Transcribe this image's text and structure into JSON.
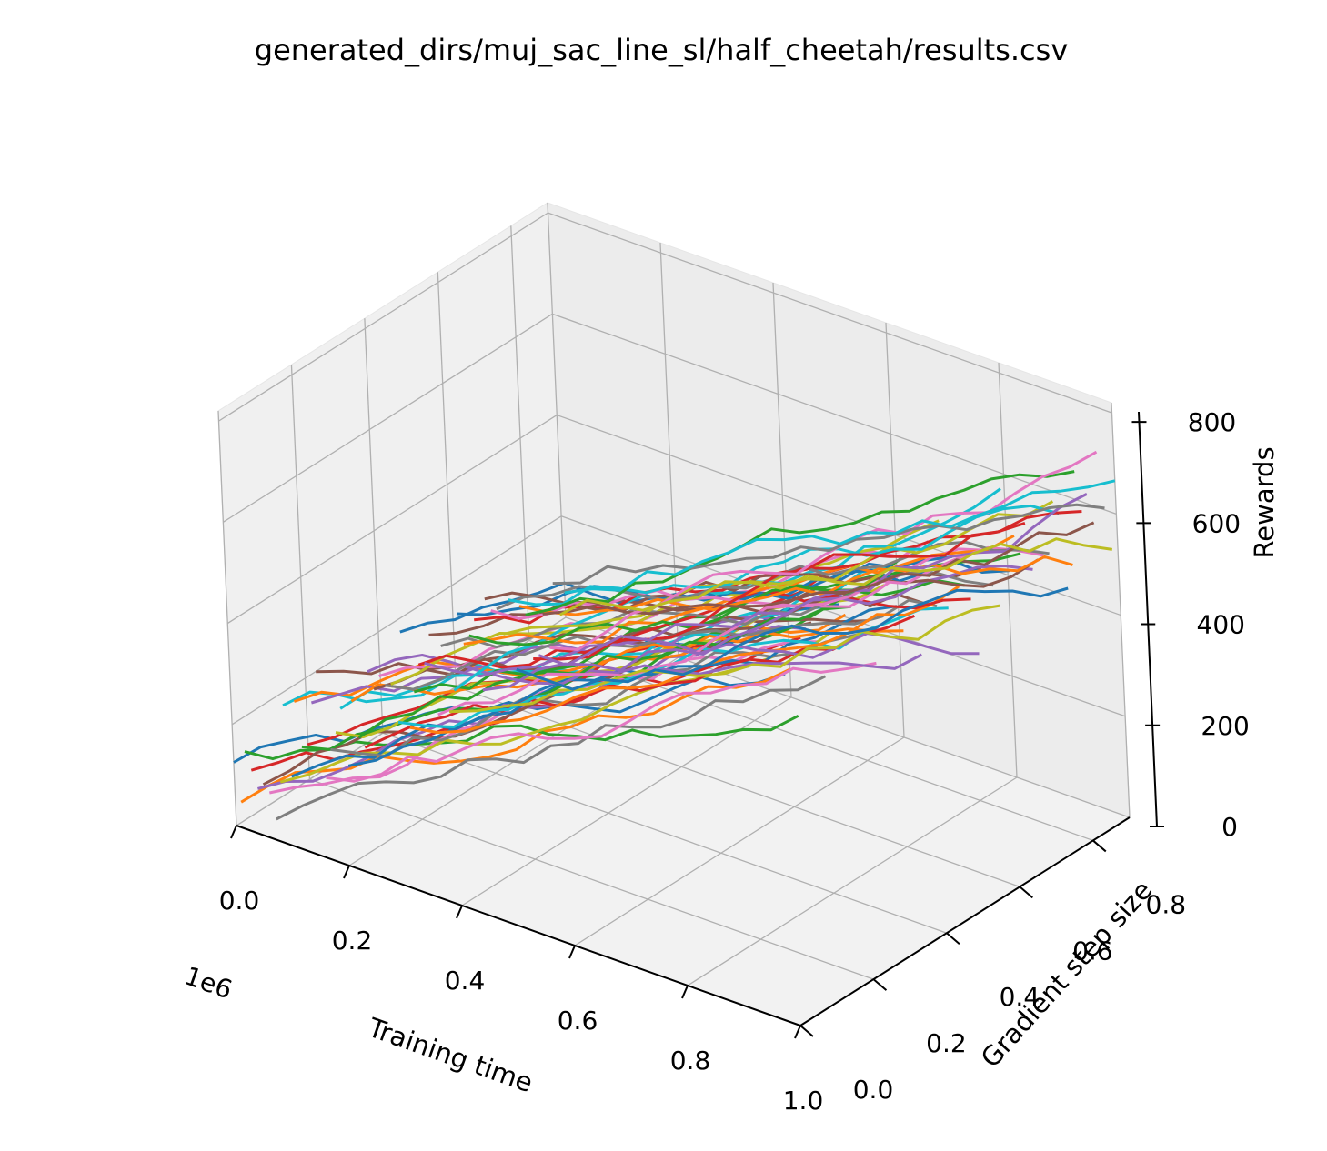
{
  "chart_data": {
    "type": "line",
    "projection": "3d",
    "title": "generated_dirs/muj_sac_line_sl/half_cheetah/results.csv",
    "xlabel": "Training time",
    "ylabel": "Gradient step size",
    "zlabel": "Rewards",
    "x_offset_label": "1e6",
    "xlim": [
      0,
      1.0
    ],
    "ylim": [
      0,
      0.9
    ],
    "zlim": [
      0,
      820
    ],
    "x_ticks": [
      "0.0",
      "0.2",
      "0.4",
      "0.6",
      "0.8",
      "1.0"
    ],
    "y_ticks": [
      "0.0",
      "0.2",
      "0.4",
      "0.6",
      "0.8"
    ],
    "z_ticks": [
      "0",
      "200",
      "400",
      "600",
      "800"
    ],
    "grid": true,
    "legend": "none",
    "palette": [
      "#1f77b4",
      "#ff7f0e",
      "#2ca02c",
      "#d62728",
      "#9467bd",
      "#8c564b",
      "#e377c2",
      "#7f7f7f",
      "#bcbd22",
      "#17becf"
    ],
    "series_count": 60,
    "series_y_min": 0.0,
    "series_y_max": 0.9,
    "series_x": [
      0.0,
      0.05,
      0.1,
      0.15,
      0.2,
      0.25,
      0.3,
      0.35,
      0.4,
      0.45,
      0.5,
      0.55,
      0.6,
      0.65,
      0.7,
      0.75,
      0.8,
      0.85,
      0.9,
      0.95,
      1.0
    ],
    "representative_rewards_start": 80,
    "representative_rewards_end": 720
  }
}
